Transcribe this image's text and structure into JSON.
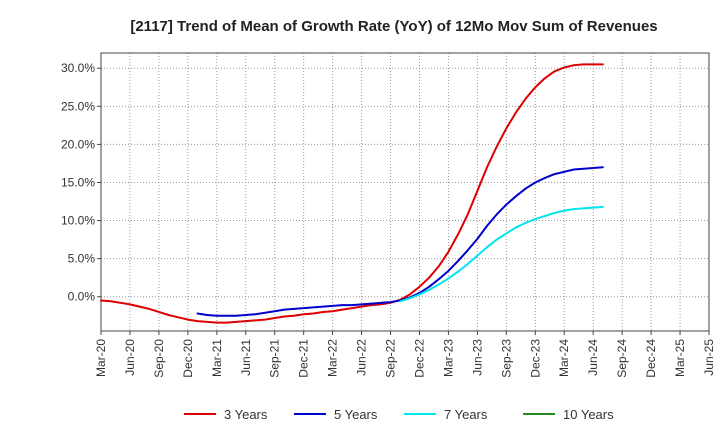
{
  "chart_data": {
    "type": "line",
    "title": "[2117]  Trend of Mean of Growth Rate (YoY) of 12Mo Mov Sum of Revenues",
    "xlabel": "",
    "ylabel": "",
    "x_ticks": [
      "Mar-20",
      "Jun-20",
      "Sep-20",
      "Dec-20",
      "Mar-21",
      "Jun-21",
      "Sep-21",
      "Dec-21",
      "Mar-22",
      "Jun-22",
      "Sep-22",
      "Dec-22",
      "Mar-23",
      "Jun-23",
      "Sep-23",
      "Dec-23",
      "Mar-24",
      "Jun-24",
      "Sep-24",
      "Dec-24",
      "Mar-25",
      "Jun-25"
    ],
    "y_ticks": [
      "0.0%",
      "5.0%",
      "10.0%",
      "15.0%",
      "20.0%",
      "25.0%",
      "30.0%"
    ],
    "ylim": [
      -4.5,
      32
    ],
    "y_tick_values": [
      0,
      5,
      10,
      15,
      20,
      25,
      30
    ],
    "grid": true,
    "legend_position": "bottom",
    "series": [
      {
        "name": "3 Years",
        "color": "#dd0000",
        "values": [
          -0.5,
          -0.6,
          -0.8,
          -1.0,
          -1.3,
          -1.6,
          -2.0,
          -2.4,
          -2.7,
          -3.0,
          -3.2,
          -3.3,
          -3.4,
          -3.4,
          -3.3,
          -3.2,
          -3.1,
          -3.0,
          -2.8,
          -2.6,
          -2.5,
          -2.3,
          -2.2,
          -2.0,
          -1.9,
          -1.7,
          -1.5,
          -1.3,
          -1.1,
          -1.0,
          -0.8,
          -0.4,
          0.3,
          1.3,
          2.5,
          4.0,
          5.9,
          8.2,
          10.8,
          13.9,
          17.0,
          19.7,
          22.1,
          24.2,
          26.0,
          27.5,
          28.7,
          29.6,
          30.1,
          30.4,
          30.5,
          30.5,
          30.5
        ]
      },
      {
        "name": "5 Years",
        "color": "#0000cc",
        "values": [
          null,
          null,
          null,
          null,
          null,
          null,
          null,
          null,
          null,
          null,
          -2.2,
          -2.4,
          -2.5,
          -2.5,
          -2.5,
          -2.4,
          -2.3,
          -2.1,
          -1.9,
          -1.7,
          -1.6,
          -1.5,
          -1.4,
          -1.3,
          -1.2,
          -1.1,
          -1.1,
          -1.0,
          -0.9,
          -0.8,
          -0.7,
          -0.5,
          -0.1,
          0.5,
          1.3,
          2.3,
          3.4,
          4.7,
          6.1,
          7.6,
          9.3,
          10.8,
          12.1,
          13.2,
          14.2,
          15.0,
          15.6,
          16.1,
          16.4,
          16.7,
          16.8,
          16.9,
          17.0
        ]
      },
      {
        "name": "7 Years",
        "color": "#00e5ee",
        "values": [
          null,
          null,
          null,
          null,
          null,
          null,
          null,
          null,
          null,
          null,
          null,
          null,
          null,
          null,
          null,
          null,
          null,
          null,
          null,
          null,
          null,
          null,
          null,
          null,
          null,
          null,
          null,
          null,
          null,
          null,
          null,
          -0.6,
          -0.2,
          0.3,
          0.9,
          1.6,
          2.4,
          3.3,
          4.3,
          5.4,
          6.5,
          7.5,
          8.3,
          9.1,
          9.7,
          10.2,
          10.6,
          11.0,
          11.3,
          11.5,
          11.6,
          11.7,
          11.8
        ]
      },
      {
        "name": "10 Years",
        "color": "#228b22",
        "values": []
      }
    ]
  }
}
